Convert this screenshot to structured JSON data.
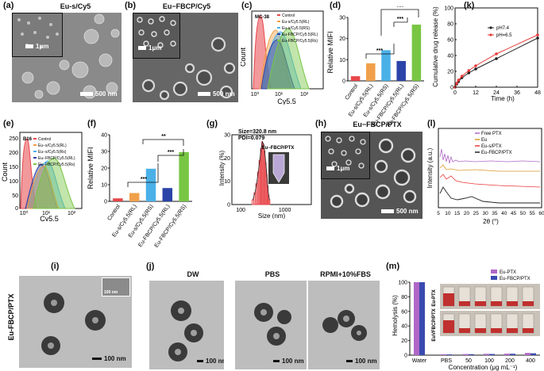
{
  "panels": {
    "a": {
      "label": "(a)",
      "title": "Eu-s/Cy5",
      "inset_scale": "1μm",
      "scale": "500 nm"
    },
    "b": {
      "label": "(b)",
      "title": "Eu−FBCP/Cy5",
      "inset_scale": "1μm",
      "scale": "500 nm"
    },
    "c": {
      "label": "(c)",
      "tag": "MC-38",
      "xlabel": "Cy5.5",
      "ylabel": "Count",
      "legend": [
        "Control",
        "Eu-s/Cy5.5(RL)",
        "Eu-s/Cy5.5(RS)",
        "Eu-FBCP/Cy5.5(RL)",
        "Eu-FBCP/Cy5.5(Rs)"
      ],
      "xticks": [
        "10⁰",
        "10¹",
        "10²"
      ]
    },
    "d": {
      "label": "(d)",
      "ylabel": "Relative MIFI",
      "sig": "***"
    },
    "e": {
      "label": "(e)",
      "tag": "B16",
      "xlabel": "Cy5.5",
      "ylabel": "Count",
      "legend": [
        "Control",
        "Eu−s/Cy5.5(RL)",
        "Eu−s/Cy5.5(Rs)",
        "Eu−FBCP/Cy5.5(RL)",
        "Eu−FBCP/Cy5.5(Rs)"
      ],
      "xticks": [
        "10⁰",
        "10¹",
        "10²"
      ]
    },
    "f": {
      "label": "(f)",
      "ylabel": "Relative MIFI",
      "sig1": "**",
      "sig2": "***",
      "sig3": "***"
    },
    "g": {
      "label": "(g)",
      "size_text": "Size=320.8 nm",
      "pdi_text": "PDI=0.079",
      "inset_title": "Eu−FBCP/PTX",
      "xlabel": "Size (nm)",
      "ylabel": "Intensity (%)"
    },
    "h": {
      "label": "(h)",
      "title": "Eu−FBCP/PTX",
      "inset_scale": "1μm",
      "scale": "500 nm"
    },
    "i": {
      "label": "(i)",
      "side": "Eu-FBCP/PTX",
      "scale": "100 nm",
      "inset_scale": "100 nm"
    },
    "j": {
      "label": "(j)",
      "titles": [
        "DW",
        "PBS",
        "RPMI+10%FBS"
      ],
      "scale": "100 nm"
    },
    "k": {
      "label": "(k)",
      "xlabel": "Time (h)",
      "ylabel": "Cumulative drug release (%)"
    },
    "l": {
      "label": "(l)",
      "xlabel": "2θ (°)",
      "ylabel": "Intensity (a.u.)",
      "legend": [
        "Free PTX",
        "Eu",
        "Eu-s/PTX",
        "Eu-FBCP/PTX"
      ]
    },
    "m": {
      "label": "(m)",
      "xlabel": "Concentration (μg mL⁻¹)",
      "ylabel": "Hemolysis (%)",
      "legend": [
        "Eu-PTX",
        "Eu-FBCP/PTX"
      ],
      "side1": "Eu-PTX",
      "side2": "EuVFBCP/PTX"
    }
  },
  "colors": {
    "control": "#e8464b",
    "rl1": "#f0a04a",
    "rs1": "#4ab1e8",
    "rl2": "#2b44a8",
    "rs2": "#78c644",
    "ph74": "#222222",
    "ph65": "#e83a3a"
  },
  "chart_data": [
    {
      "type": "bar",
      "panel": "d",
      "categories": [
        "Control",
        "Eu-s/Cy5.5(RL)",
        "Eu-s/Cy5.5(RS)",
        "Eu-FBCP/Cy5.5(RL)",
        "Eu-FBCP/Cy5.5(RS)"
      ],
      "values": [
        2.2,
        8.3,
        14.5,
        9.4,
        26.6
      ],
      "yticks": [
        0,
        10,
        20,
        30
      ],
      "ylim": [
        0,
        30
      ]
    },
    {
      "type": "bar",
      "panel": "f",
      "categories": [
        "Control",
        "Eu-s/Cy5.5(RL)",
        "Eu-s/Cy5.5(RS)",
        "Eu-FBCP/Cy5.5(RL)",
        "Eu-FBCP/Cy5.5(RS)"
      ],
      "values": [
        1.8,
        5.0,
        19.6,
        8.0,
        29.6
      ],
      "yticks": [
        0,
        10,
        20,
        30,
        40
      ],
      "ylim": [
        0,
        40
      ]
    },
    {
      "type": "bar",
      "panel": "g",
      "x": [
        180,
        200,
        220,
        240,
        260,
        280,
        300,
        320,
        340,
        360,
        380,
        400,
        420,
        440
      ],
      "values": [
        2,
        5,
        9,
        14,
        19,
        24,
        27,
        26,
        23,
        18,
        13,
        8,
        4,
        2
      ],
      "yticks": [
        0,
        10,
        20,
        30
      ],
      "ylim": [
        0,
        30
      ],
      "xticks": [
        "100",
        "1000"
      ]
    },
    {
      "type": "line",
      "panel": "k",
      "x": [
        0,
        1,
        2,
        4,
        8,
        12,
        24,
        48
      ],
      "series": [
        {
          "name": "pH7.4",
          "values": [
            0,
            4,
            7,
            12,
            18,
            23,
            36,
            62
          ]
        },
        {
          "name": "pH=6.5",
          "values": [
            0,
            5,
            9,
            14,
            21,
            27,
            42,
            66
          ]
        }
      ],
      "xticks": [
        0,
        12,
        24,
        36,
        48
      ],
      "yticks": [
        0,
        20,
        40,
        60,
        80,
        100
      ],
      "ylim": [
        0,
        100
      ],
      "xlim": [
        0,
        48
      ]
    },
    {
      "type": "bar",
      "panel": "m",
      "categories": [
        "Water",
        "PBS",
        "50",
        "100",
        "200",
        "400"
      ],
      "series": [
        {
          "name": "Eu-PTX",
          "values": [
            100,
            1.2,
            1.5,
            1.8,
            2.0,
            3.0
          ]
        },
        {
          "name": "Eu-FBCP/PTX",
          "values": [
            100,
            1.0,
            1.3,
            1.6,
            1.9,
            2.5
          ]
        }
      ],
      "yticks": [
        0,
        20,
        40,
        60,
        80,
        100
      ],
      "ylim": [
        0,
        100
      ]
    },
    {
      "type": "line",
      "panel": "l",
      "xticks": [
        5,
        10,
        15,
        20,
        25,
        30,
        35,
        40,
        45,
        50,
        55,
        60
      ]
    }
  ]
}
